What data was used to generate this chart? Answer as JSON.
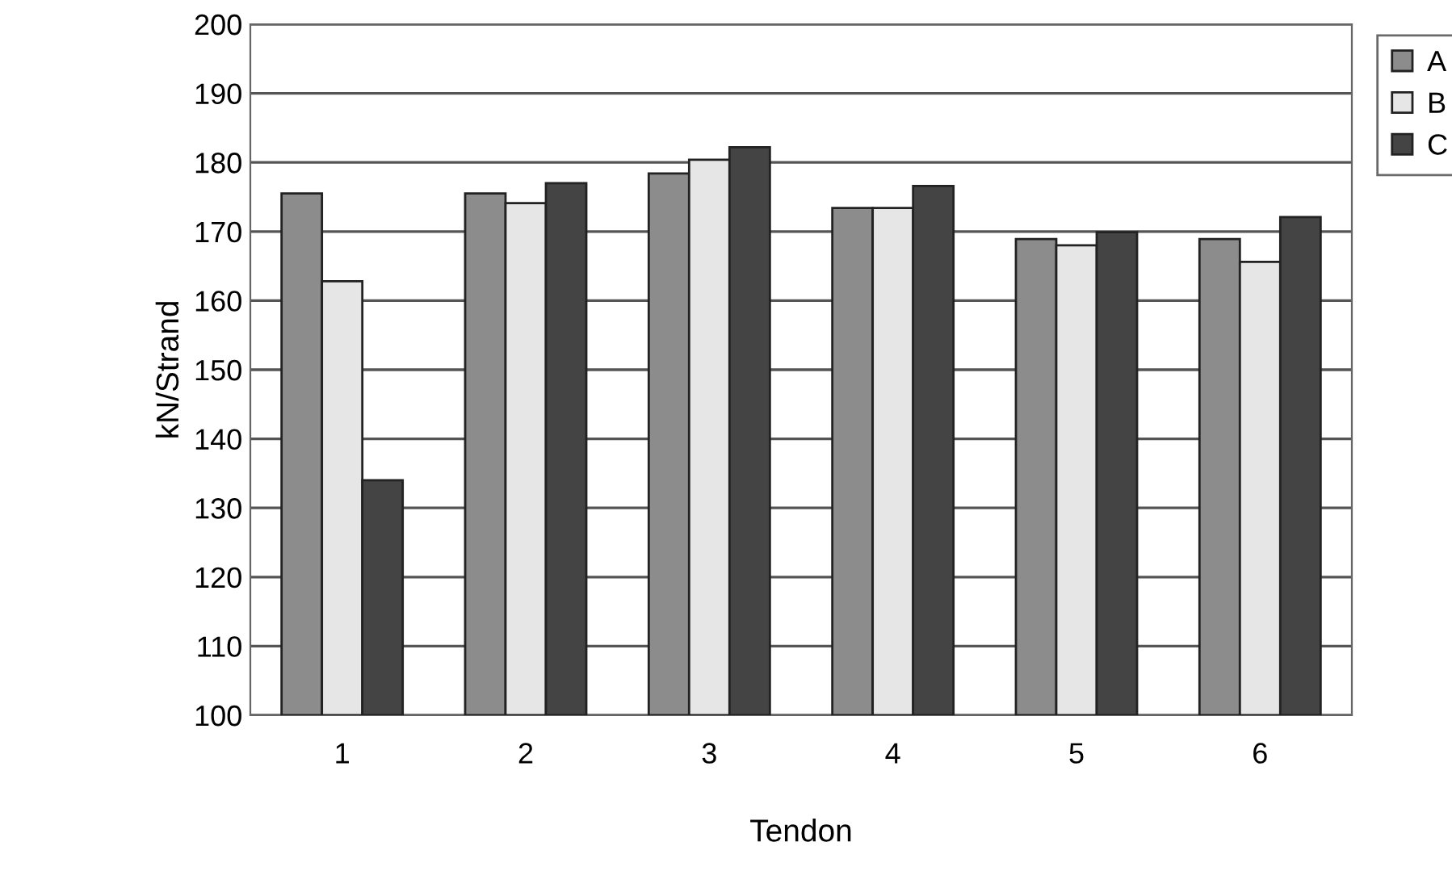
{
  "chart_data": {
    "type": "bar",
    "xlabel": "Tendon",
    "ylabel": "kN/Strand",
    "categories": [
      "1",
      "2",
      "3",
      "4",
      "5",
      "6"
    ],
    "series": [
      {
        "name": "A",
        "color": "#8c8c8c",
        "values": [
          175.5,
          175.5,
          178.4,
          173.4,
          168.9,
          168.9
        ]
      },
      {
        "name": "B",
        "color": "#e6e6e6",
        "values": [
          162.8,
          174.1,
          180.4,
          173.4,
          168.0,
          165.6
        ]
      },
      {
        "name": "C",
        "color": "#444444",
        "values": [
          134.0,
          177.0,
          182.2,
          176.6,
          169.9,
          172.1
        ]
      }
    ],
    "ylim": [
      100,
      200
    ],
    "yticks": [
      100,
      110,
      120,
      130,
      140,
      150,
      160,
      170,
      180,
      190,
      200
    ],
    "grid": "y",
    "legend": "top right"
  }
}
